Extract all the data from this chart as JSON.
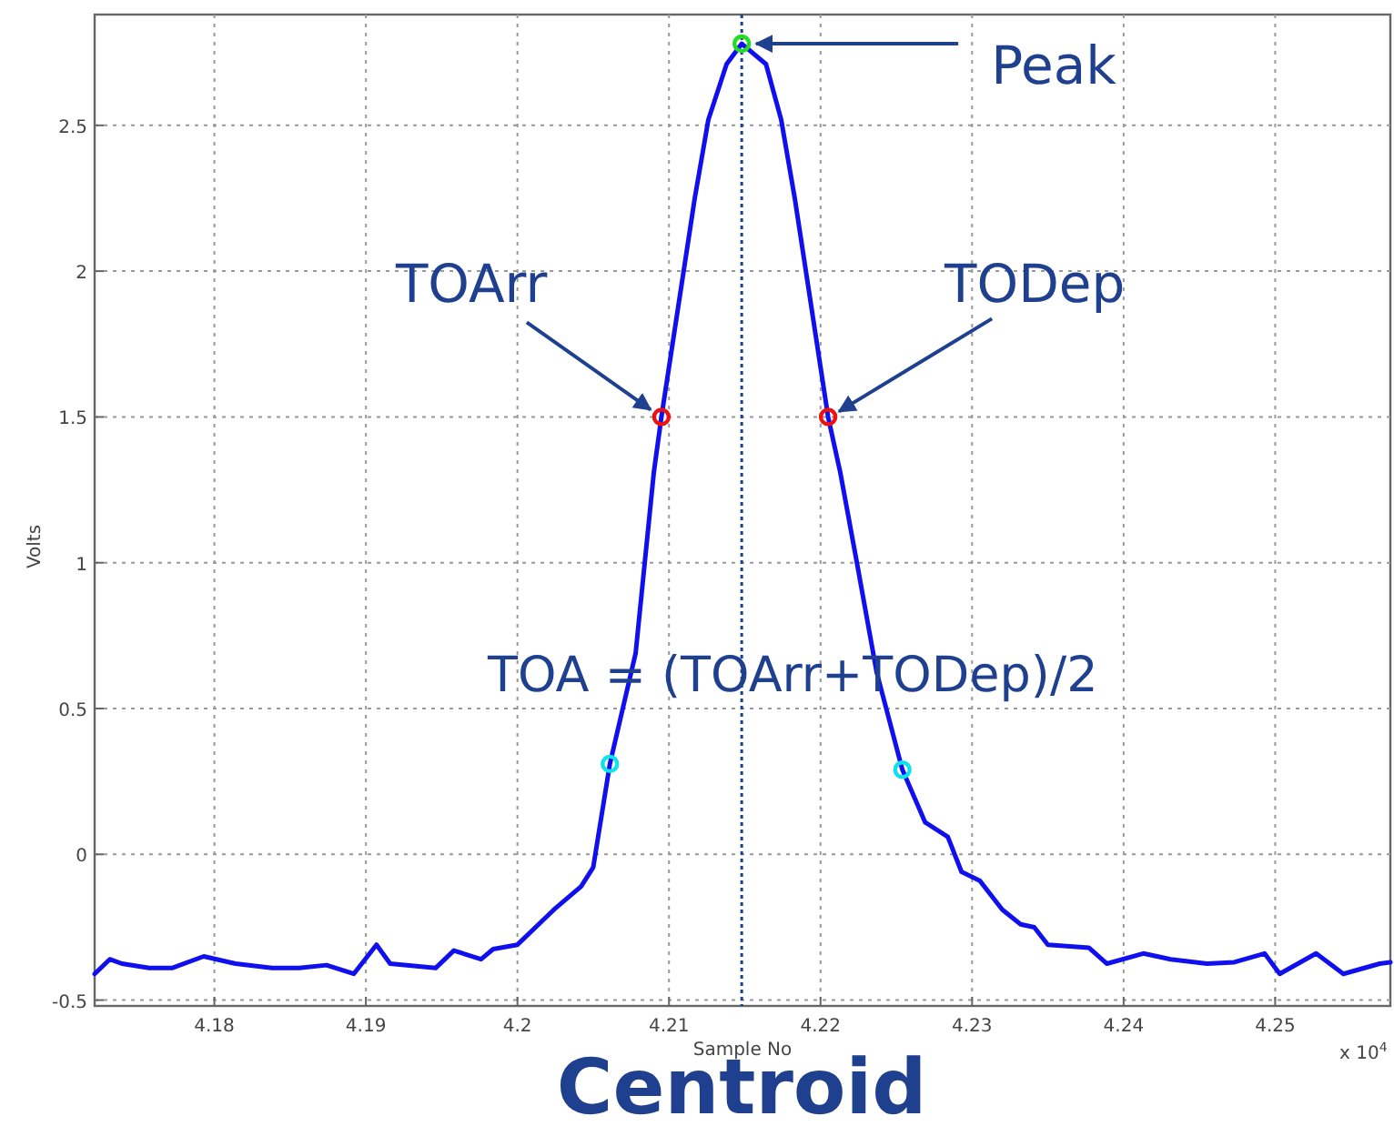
{
  "chart_data": {
    "type": "line",
    "xlabel": "Sample No",
    "ylabel": "Volts",
    "xlim": [
      4.1721,
      4.2576
    ],
    "ylim": [
      -0.52,
      2.88
    ],
    "xticks": [
      4.18,
      4.19,
      4.2,
      4.21,
      4.22,
      4.23,
      4.24,
      4.25
    ],
    "yticks": [
      -0.5,
      0,
      0.5,
      1,
      1.5,
      2,
      2.5
    ],
    "grid": true,
    "line_style": "solid",
    "marker": "none",
    "series": [
      {
        "color": "#1010ee",
        "x": [
          4.1721,
          4.1731,
          4.1739,
          4.1757,
          4.1772,
          4.1793,
          4.1814,
          4.1838,
          4.1856,
          4.1874,
          4.1892,
          4.1907,
          4.1916,
          4.1946,
          4.1958,
          4.1976,
          4.1984,
          4.2,
          4.2024,
          4.2042,
          4.205,
          4.2061,
          4.2078,
          4.209,
          4.2095,
          4.2117,
          4.2126,
          4.2138,
          4.2148,
          4.2164,
          4.2174,
          4.2183,
          4.2205,
          4.2213,
          4.2224,
          4.2237,
          4.2254,
          4.2269,
          4.2284,
          4.2293,
          4.2305,
          4.232,
          4.2332,
          4.2341,
          4.235,
          4.2377,
          4.2389,
          4.2413,
          4.2431,
          4.2455,
          4.2473,
          4.2493,
          4.2503,
          4.2527,
          4.2545,
          4.2569,
          4.2576
        ],
        "values": [
          -0.41,
          -0.36,
          -0.375,
          -0.39,
          -0.39,
          -0.35,
          -0.375,
          -0.39,
          -0.39,
          -0.38,
          -0.41,
          -0.31,
          -0.375,
          -0.39,
          -0.33,
          -0.36,
          -0.325,
          -0.31,
          -0.19,
          -0.11,
          -0.045,
          0.31,
          0.69,
          1.31,
          1.5,
          2.25,
          2.52,
          2.71,
          2.78,
          2.71,
          2.52,
          2.25,
          1.5,
          1.31,
          1.0,
          0.625,
          0.29,
          0.11,
          0.06,
          -0.06,
          -0.09,
          -0.19,
          -0.24,
          -0.25,
          -0.31,
          -0.32,
          -0.375,
          -0.34,
          -0.36,
          -0.375,
          -0.37,
          -0.34,
          -0.41,
          -0.34,
          -0.41,
          -0.375,
          -0.37
        ]
      },
      {
        "type": "scatter",
        "marker": "circle",
        "color": "#ee1111",
        "x": [
          4.2095,
          4.2205
        ],
        "values": [
          1.5,
          1.5
        ]
      },
      {
        "type": "scatter",
        "marker": "circle",
        "color": "#22dd22",
        "x": [
          4.2148
        ],
        "values": [
          2.78
        ]
      },
      {
        "type": "scatter",
        "marker": "circle",
        "color": "#11e0ee",
        "x": [
          4.2061,
          4.2254
        ],
        "values": [
          0.31,
          0.29
        ]
      }
    ],
    "ref_lines": [
      {
        "axis": "x",
        "value": 4.2148,
        "label": "Centroid",
        "color": "#1f3f8f",
        "line_style": "dotted"
      }
    ],
    "annotations": [
      {
        "text": "Peak",
        "x": 4.2148,
        "y": 2.78
      },
      {
        "text": "TOArr",
        "x": 4.2095,
        "y": 1.5
      },
      {
        "text": "TODep",
        "x": 4.2205,
        "y": 1.5
      },
      "TOA = (TOArr+TODep)/2",
      "x 10$^{4}$"
    ]
  }
}
